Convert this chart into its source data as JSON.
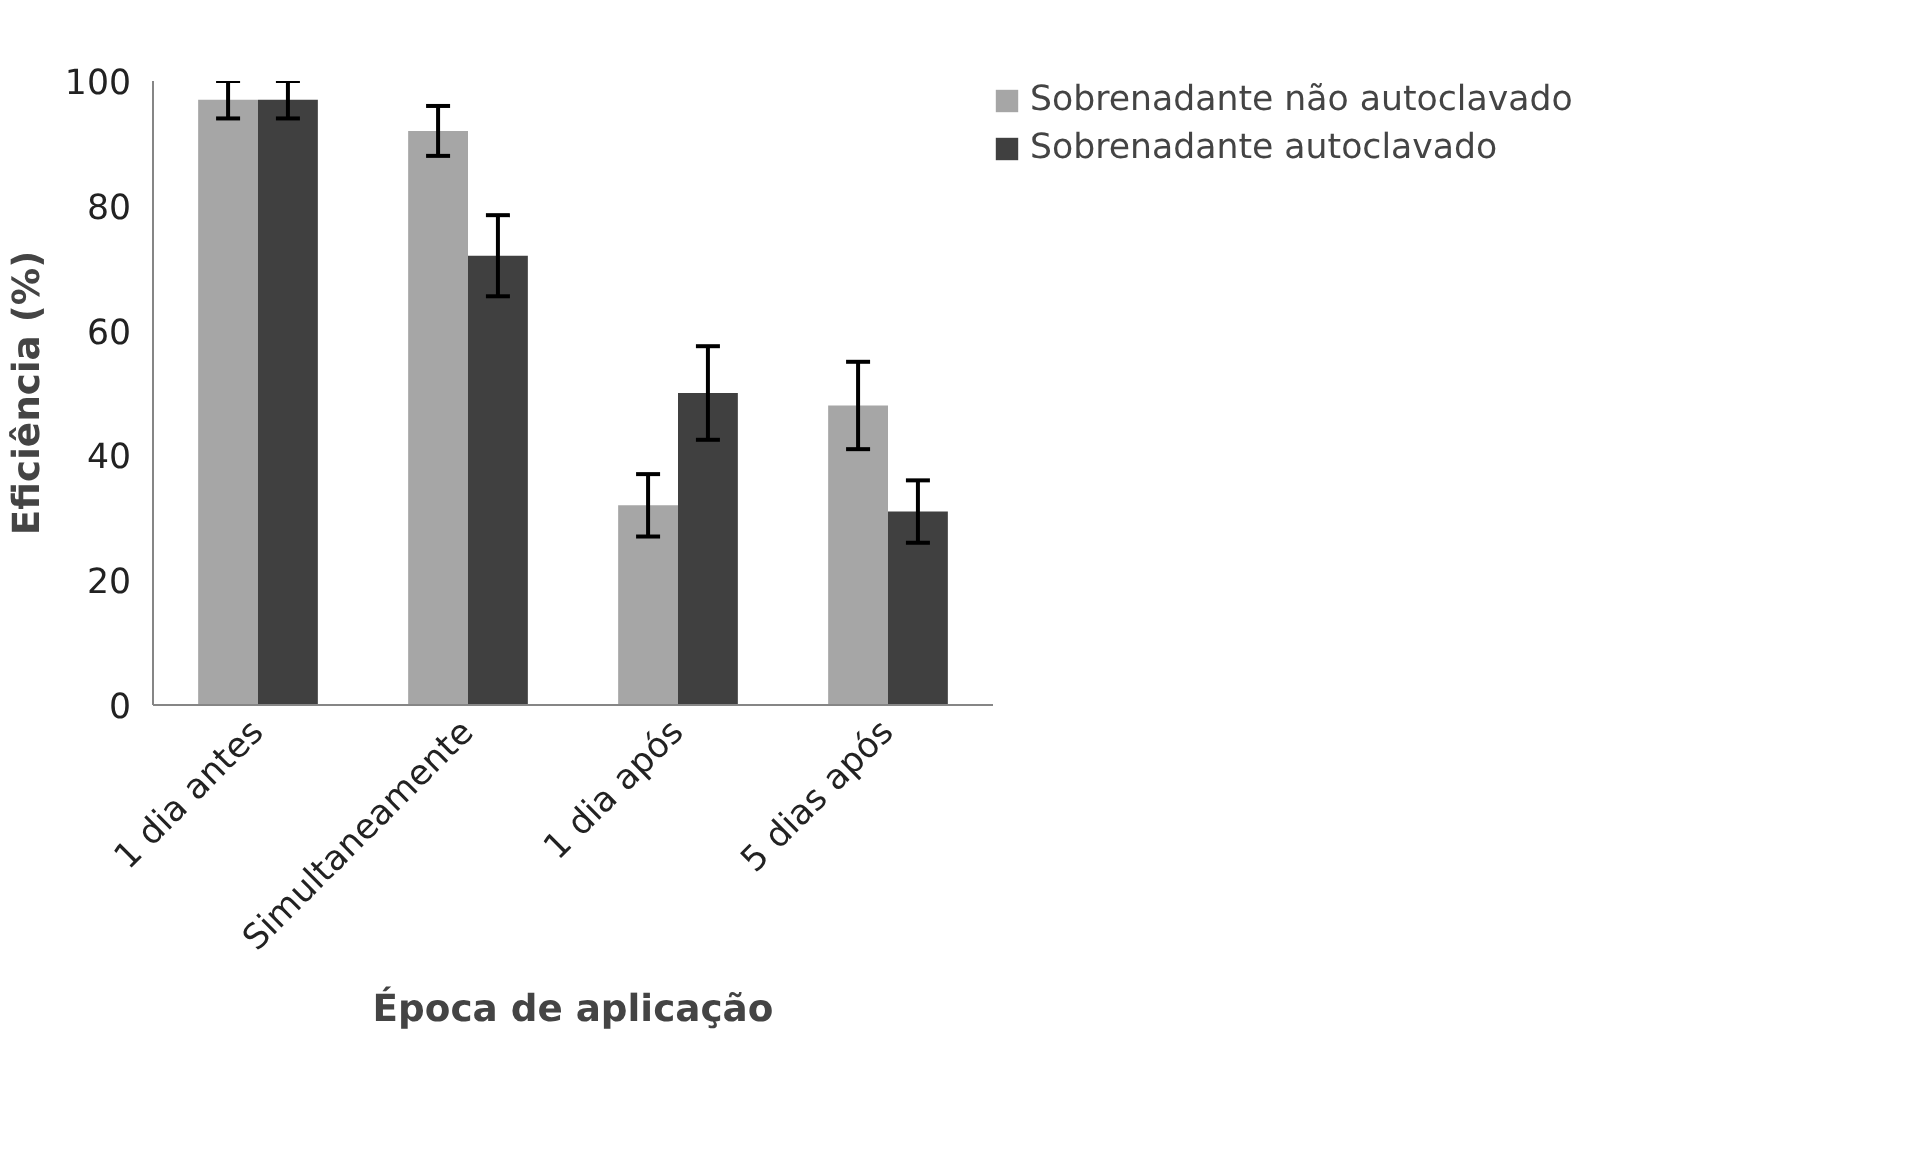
{
  "chart_data": {
    "type": "bar",
    "xlabel": "Época de aplicação",
    "ylabel": "Eficiência (%)",
    "categories": [
      "1 dia antes",
      "Simultaneamente",
      "1 dia após",
      "5 dias após"
    ],
    "series": [
      {
        "name": "Sobrenadante não autoclavado",
        "color": "#a6a6a6",
        "values": [
          97,
          92,
          32,
          48
        ],
        "errors": [
          3,
          4,
          5,
          7
        ]
      },
      {
        "name": "Sobrenadante autoclavado",
        "color": "#404040",
        "values": [
          97,
          72,
          50,
          31
        ],
        "errors": [
          3,
          6.5,
          7.5,
          5
        ]
      }
    ],
    "ylim": [
      0,
      100
    ],
    "yticks": [
      0,
      20,
      40,
      60,
      80,
      100
    ],
    "grid": false,
    "legend": "top right"
  }
}
